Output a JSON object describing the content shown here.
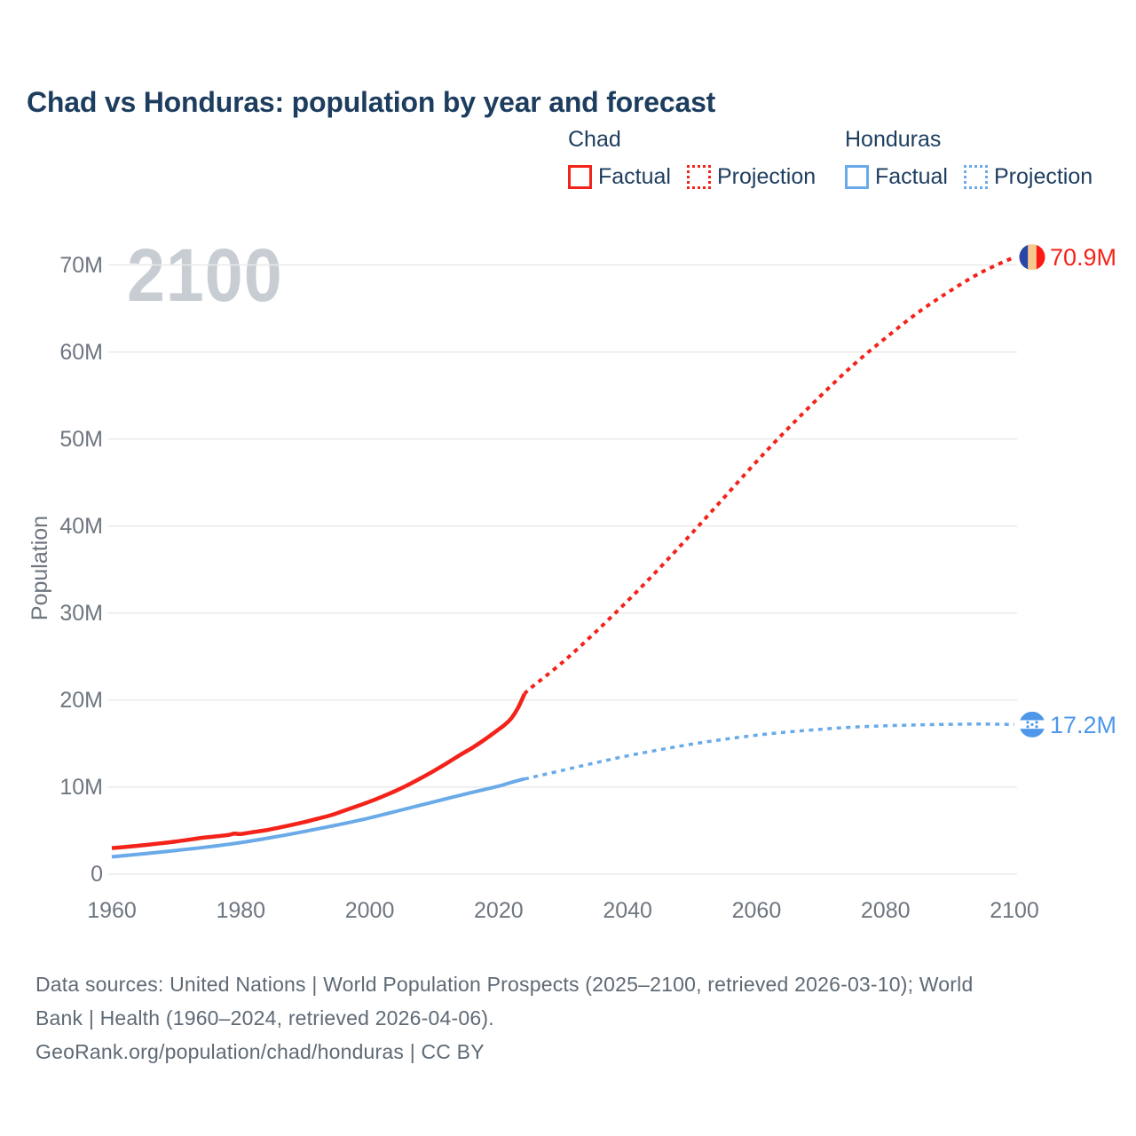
{
  "title": "Chad vs Honduras: population by year and forecast",
  "watermark": "2100",
  "y_axis_title": "Population",
  "legend": {
    "chad": {
      "header": "Chad",
      "factual": "Factual",
      "projection": "Projection"
    },
    "honduras": {
      "header": "Honduras",
      "factual": "Factual",
      "projection": "Projection"
    }
  },
  "end_labels": {
    "chad": {
      "value": "70.9M"
    },
    "honduras": {
      "value": "17.2M"
    }
  },
  "footer": {
    "sources_line1": "Data sources: United Nations | World Population Prospects (2025–2100, retrieved 2026-03-10); World",
    "sources_line2": "Bank | Health (1960–2024, retrieved 2026-04-06).",
    "attribution": "GeoRank.org/population/chad/honduras | CC BY"
  },
  "colors": {
    "chad_line": "#F3231A",
    "honduras_line": "#6AAAE8",
    "honduras_accent": "#4E97E9",
    "grid": "#E9E9E9",
    "navy": "#1D3D5F",
    "axis_text": "#6E7680",
    "watermark": "#C8CDD3",
    "chad_flag": {
      "blue": "#2845A7",
      "gold": "#F8C98D",
      "red": "#FB1B14"
    },
    "honduras_flag": {
      "blue": "#4E97E9",
      "white": "#FFFFFF",
      "stars": "#4E97E9"
    }
  },
  "chart_data": {
    "type": "line",
    "title": "Chad vs Honduras: population by year and forecast",
    "xlabel": "",
    "ylabel": "Population",
    "y_unit": "millions",
    "xlim": [
      1960,
      2100
    ],
    "ylim": [
      0,
      70
    ],
    "grid": true,
    "legend_position": "top-right",
    "x_ticks": [
      1960,
      1980,
      2000,
      2020,
      2040,
      2060,
      2080,
      2100
    ],
    "y_ticks": [
      {
        "v": 0,
        "label": "0"
      },
      {
        "v": 10,
        "label": "10M"
      },
      {
        "v": 20,
        "label": "20M"
      },
      {
        "v": 30,
        "label": "30M"
      },
      {
        "v": 40,
        "label": "40M"
      },
      {
        "v": 50,
        "label": "50M"
      },
      {
        "v": 60,
        "label": "60M"
      },
      {
        "v": 70,
        "label": "70M"
      }
    ],
    "series": [
      {
        "name": "Chad Factual",
        "style": "solid",
        "color": "#F3231A",
        "width": 4.5,
        "points": [
          [
            1960,
            3.0
          ],
          [
            1962,
            3.12
          ],
          [
            1964,
            3.26
          ],
          [
            1966,
            3.42
          ],
          [
            1968,
            3.58
          ],
          [
            1970,
            3.76
          ],
          [
            1972,
            3.97
          ],
          [
            1974,
            4.18
          ],
          [
            1976,
            4.33
          ],
          [
            1978,
            4.5
          ],
          [
            1979,
            4.66
          ],
          [
            1980,
            4.62
          ],
          [
            1982,
            4.84
          ],
          [
            1984,
            5.06
          ],
          [
            1986,
            5.36
          ],
          [
            1988,
            5.68
          ],
          [
            1990,
            6.01
          ],
          [
            1992,
            6.39
          ],
          [
            1994,
            6.78
          ],
          [
            1996,
            7.29
          ],
          [
            1998,
            7.8
          ],
          [
            2000,
            8.34
          ],
          [
            2002,
            8.93
          ],
          [
            2004,
            9.56
          ],
          [
            2006,
            10.28
          ],
          [
            2008,
            11.06
          ],
          [
            2010,
            11.89
          ],
          [
            2012,
            12.77
          ],
          [
            2014,
            13.69
          ],
          [
            2016,
            14.56
          ],
          [
            2018,
            15.55
          ],
          [
            2020,
            16.64
          ],
          [
            2021,
            17.2
          ],
          [
            2022,
            17.95
          ],
          [
            2023,
            19.1
          ],
          [
            2024,
            20.7
          ]
        ]
      },
      {
        "name": "Chad Projection",
        "style": "dotted",
        "color": "#F3231A",
        "width": 4,
        "points": [
          [
            2024,
            20.7
          ],
          [
            2025,
            21.4
          ],
          [
            2030,
            24.4
          ],
          [
            2035,
            27.8
          ],
          [
            2040,
            31.4
          ],
          [
            2045,
            35.2
          ],
          [
            2050,
            39.2
          ],
          [
            2055,
            43.3
          ],
          [
            2060,
            47.4
          ],
          [
            2065,
            51.3
          ],
          [
            2070,
            55.0
          ],
          [
            2075,
            58.5
          ],
          [
            2080,
            61.6
          ],
          [
            2085,
            64.5
          ],
          [
            2090,
            67.0
          ],
          [
            2095,
            69.2
          ],
          [
            2100,
            70.9
          ]
        ]
      },
      {
        "name": "Honduras Factual",
        "style": "solid",
        "color": "#6AAAE8",
        "width": 4,
        "points": [
          [
            1960,
            2.0
          ],
          [
            1965,
            2.35
          ],
          [
            1970,
            2.73
          ],
          [
            1975,
            3.14
          ],
          [
            1980,
            3.63
          ],
          [
            1985,
            4.24
          ],
          [
            1990,
            4.92
          ],
          [
            1995,
            5.66
          ],
          [
            2000,
            6.46
          ],
          [
            2005,
            7.39
          ],
          [
            2010,
            8.32
          ],
          [
            2015,
            9.24
          ],
          [
            2020,
            10.12
          ],
          [
            2022,
            10.55
          ],
          [
            2024,
            10.95
          ]
        ]
      },
      {
        "name": "Honduras Projection",
        "style": "dotted",
        "color": "#6AAAE8",
        "width": 3.5,
        "points": [
          [
            2024,
            10.95
          ],
          [
            2025,
            11.1
          ],
          [
            2030,
            11.95
          ],
          [
            2035,
            12.8
          ],
          [
            2040,
            13.6
          ],
          [
            2045,
            14.3
          ],
          [
            2050,
            14.95
          ],
          [
            2055,
            15.5
          ],
          [
            2060,
            15.97
          ],
          [
            2065,
            16.35
          ],
          [
            2070,
            16.65
          ],
          [
            2075,
            16.9
          ],
          [
            2080,
            17.05
          ],
          [
            2085,
            17.15
          ],
          [
            2090,
            17.22
          ],
          [
            2095,
            17.25
          ],
          [
            2100,
            17.2
          ]
        ]
      }
    ],
    "end_markers": [
      {
        "flag": "chad",
        "year": 2100,
        "value": 70.9,
        "label": "70.9M"
      },
      {
        "flag": "honduras",
        "year": 2100,
        "value": 17.2,
        "label": "17.2M"
      }
    ]
  }
}
